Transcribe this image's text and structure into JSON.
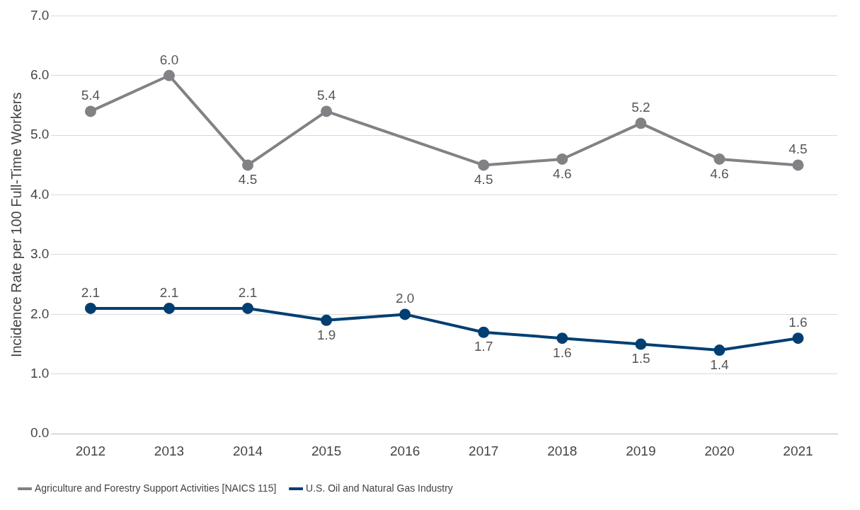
{
  "chart_data": {
    "type": "line",
    "ylabel": "Incidence Rate per 100 Full-Time Workers",
    "categories": [
      "2012",
      "2013",
      "2014",
      "2015",
      "2016",
      "2017",
      "2018",
      "2019",
      "2020",
      "2021"
    ],
    "series": [
      {
        "name": "Agriculture and Forestry Support Activities [NAICS 115]",
        "color": "#808285",
        "values": [
          5.4,
          6.0,
          4.5,
          5.4,
          null,
          4.5,
          4.6,
          5.2,
          4.6,
          4.5
        ],
        "value_labels": [
          "5.4",
          "6.0",
          "4.5",
          "5.4",
          null,
          "4.5",
          "4.6",
          "5.2",
          "4.6",
          "4.5"
        ]
      },
      {
        "name": "U.S. Oil and Natural Gas Industry",
        "color": "#003f72",
        "values": [
          2.1,
          2.1,
          2.1,
          1.9,
          2.0,
          1.7,
          1.6,
          1.5,
          1.4,
          1.6
        ],
        "value_labels": [
          "2.1",
          "2.1",
          "2.1",
          "1.9",
          "2.0",
          "1.7",
          "1.6",
          "1.5",
          "1.4",
          "1.6"
        ]
      }
    ],
    "ylim": [
      0,
      7
    ],
    "yticks": [
      {
        "value": 0,
        "label": "0.0"
      },
      {
        "value": 1,
        "label": "1.0"
      },
      {
        "value": 2,
        "label": "2.0"
      },
      {
        "value": 3,
        "label": "3.0"
      },
      {
        "value": 4,
        "label": "4.0"
      },
      {
        "value": 5,
        "label": "5.0"
      },
      {
        "value": 6,
        "label": "6.0"
      },
      {
        "value": 7,
        "label": "7.0"
      }
    ],
    "grid": "y",
    "legend": "bottom left",
    "marker": "circle",
    "line_style": "solid"
  }
}
